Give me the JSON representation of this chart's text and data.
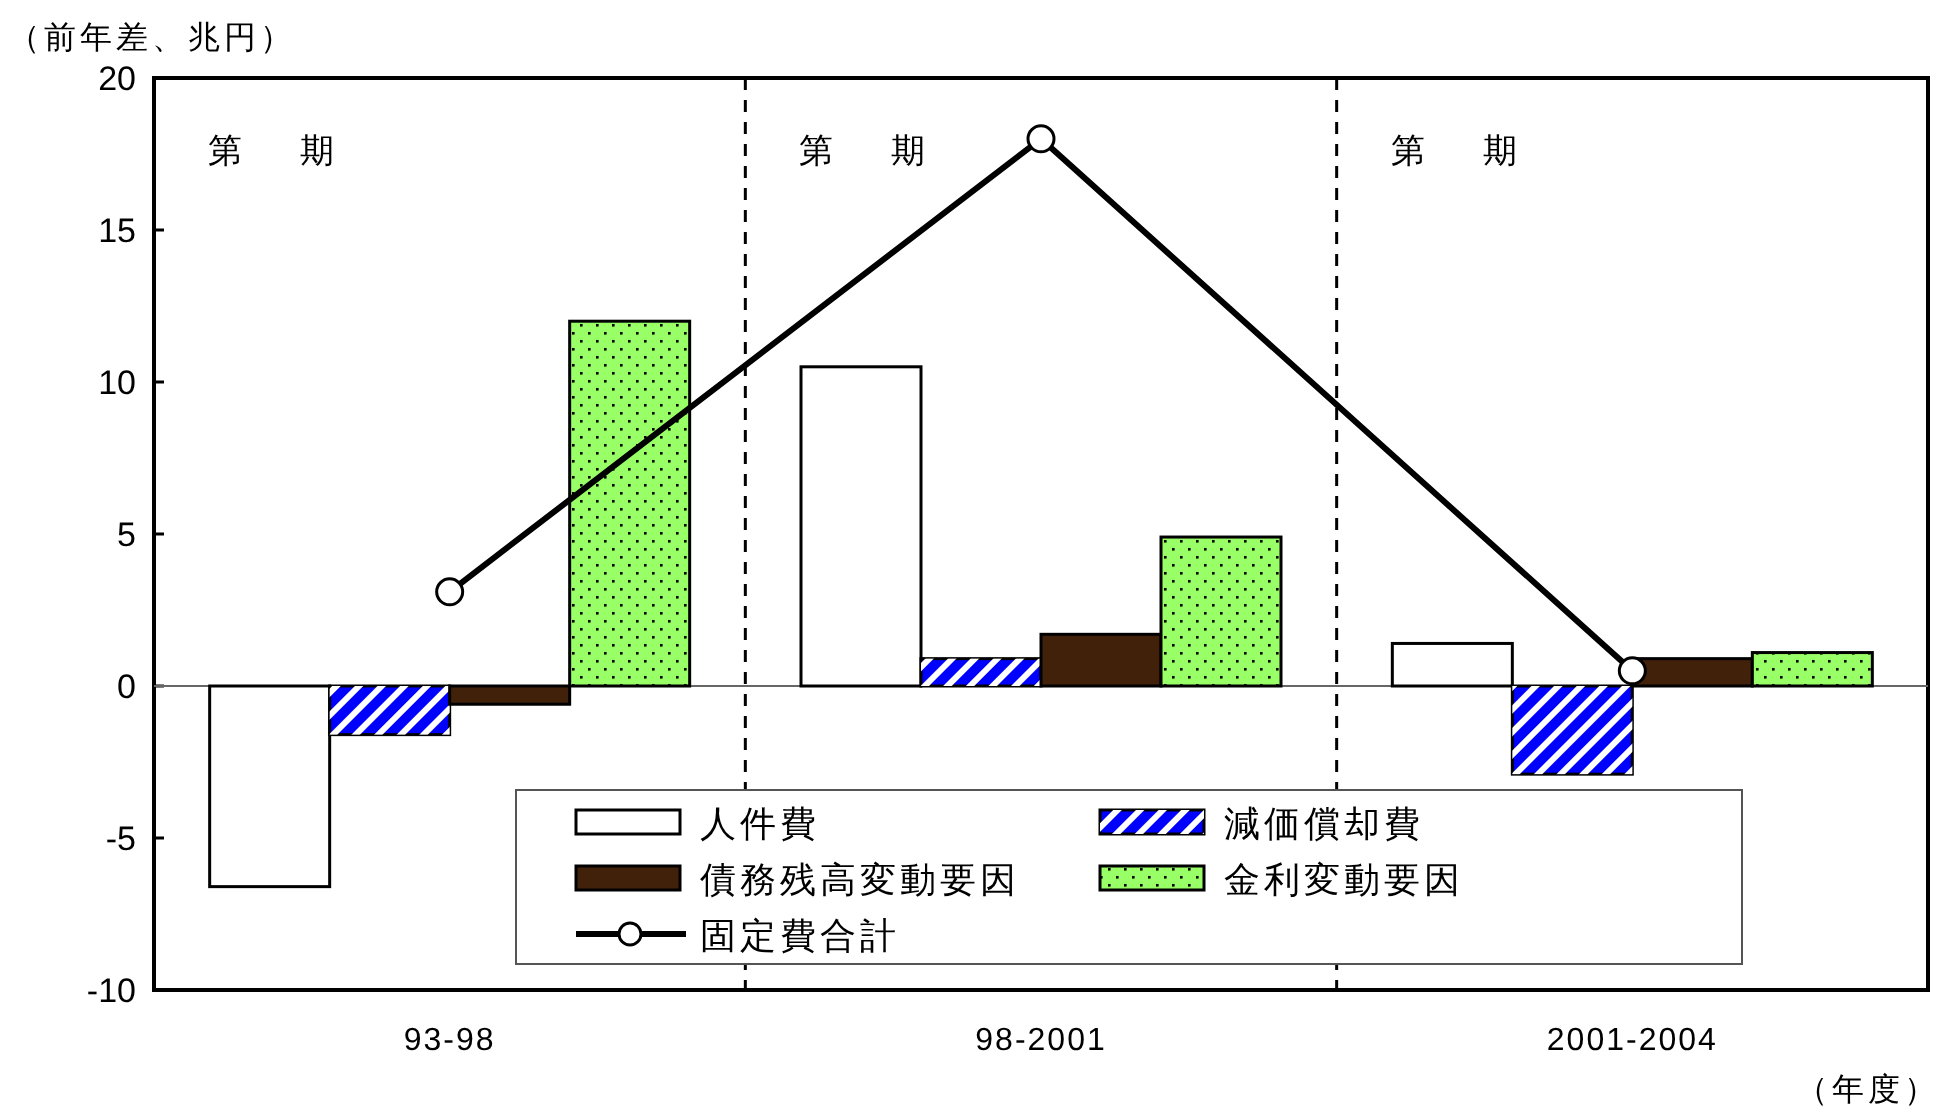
{
  "chart_data": {
    "type": "bar",
    "ylabel": "（前年差、兆円）",
    "xlabel": "（年度）",
    "categories": [
      "93-98",
      "98-2001",
      "2001-2004"
    ],
    "series": [
      {
        "name": "人件費",
        "color": "#ffffff",
        "values": [
          -6.6,
          10.5,
          1.4
        ]
      },
      {
        "name": "減価償却費",
        "color": "#0000ff",
        "values": [
          -1.6,
          0.9,
          -2.9
        ]
      },
      {
        "name": "債務残高変動要因",
        "color": "#42210b",
        "values": [
          -0.6,
          1.7,
          0.9
        ]
      },
      {
        "name": "金利変動要因",
        "color": "#99ff66",
        "values": [
          12.0,
          4.9,
          1.1
        ]
      },
      {
        "name": "固定費合計",
        "type": "line",
        "color": "#000000",
        "marker": "circle",
        "values": [
          3.1,
          18.0,
          0.5
        ]
      }
    ],
    "ylim": [
      -10,
      20
    ],
    "yticks": [
      -10,
      -5,
      0,
      5,
      10,
      15,
      20
    ],
    "annotations": [
      "第　期",
      "第　期",
      "第　期"
    ],
    "legend": "bottom",
    "grid": false
  }
}
